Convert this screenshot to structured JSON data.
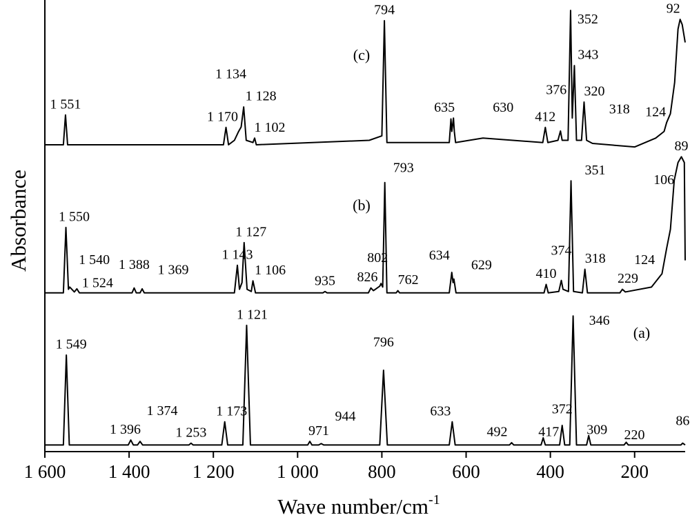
{
  "chart_data": {
    "type": "line",
    "xlabel": "Wave number/cm",
    "xlabel_sup": "-1",
    "ylabel": "Absorbance",
    "xlim": [
      1600,
      80
    ],
    "ylim": [
      0,
      100
    ],
    "xticks": [
      {
        "value": 1600,
        "label": "1 600"
      },
      {
        "value": 1400,
        "label": "1 400"
      },
      {
        "value": 1200,
        "label": "1 200"
      },
      {
        "value": 1000,
        "label": "1 000"
      },
      800,
      600,
      400,
      200
    ],
    "series": [
      {
        "name": "(a)",
        "color": "#000000",
        "x": [
          1600,
          1556,
          1549,
          1542,
          1402,
          1396,
          1390,
          1380,
          1374,
          1368,
          1258,
          1253,
          1248,
          1180,
          1173,
          1166,
          1130,
          1121,
          1112,
          976,
          971,
          966,
          950,
          944,
          938,
          805,
          796,
          787,
          640,
          633,
          626,
          497,
          492,
          487,
          422,
          417,
          412,
          378,
          372,
          366,
          354,
          346,
          338,
          314,
          309,
          304,
          225,
          220,
          215,
          90,
          86,
          80
        ],
        "values": [
          1.5,
          1.5,
          21.7,
          1.5,
          1.5,
          2.6,
          1.5,
          1.5,
          2.3,
          1.5,
          1.5,
          1.9,
          1.5,
          1.5,
          6.7,
          1.5,
          1.5,
          28.4,
          1.5,
          1.5,
          2.3,
          1.5,
          1.5,
          1.8,
          1.5,
          1.5,
          18.3,
          1.5,
          1.5,
          6.7,
          1.5,
          1.5,
          2.0,
          1.5,
          1.5,
          3.1,
          1.5,
          1.5,
          5.9,
          1.5,
          1.5,
          30.5,
          1.5,
          1.5,
          3.6,
          1.5,
          1.5,
          2.1,
          1.5,
          1.5,
          1.9,
          1.5
        ],
        "peaks": [
          1549,
          1396,
          1374,
          1253,
          1173,
          1121,
          971,
          944,
          796,
          633,
          492,
          417,
          372,
          346,
          309,
          220,
          86
        ],
        "peak_labels": [
          "1 549",
          "1 396",
          "1 374",
          "1 253",
          "1 173",
          "1 121",
          "971",
          "944",
          "796",
          "633",
          "492",
          "417",
          "372",
          "346",
          "309",
          "220",
          "86"
        ]
      },
      {
        "name": "(b)",
        "color": "#000000",
        "x": [
          1600,
          1556,
          1550,
          1544,
          1541,
          1530,
          1524,
          1518,
          1393,
          1388,
          1383,
          1374,
          1369,
          1364,
          1150,
          1143,
          1138,
          1132,
          1127,
          1120,
          1110,
          1106,
          1100,
          940,
          935,
          930,
          832,
          826,
          820,
          805,
          802,
          798,
          793,
          788,
          766,
          762,
          758,
          640,
          634,
          631,
          629,
          624,
          415,
          410,
          405,
          380,
          374,
          370,
          357,
          351,
          345,
          324,
          318,
          312,
          235,
          229,
          222,
          160,
          135,
          124,
          115,
          106,
          97,
          89,
          82,
          80
        ],
        "values": [
          35.7,
          35.7,
          50.4,
          36.5,
          37.0,
          35.9,
          36.6,
          35.7,
          35.7,
          36.8,
          35.7,
          35.7,
          36.6,
          35.7,
          35.7,
          41.9,
          36.5,
          38,
          47,
          36.5,
          36,
          38.4,
          35.7,
          35.7,
          36.0,
          35.7,
          35.7,
          36.8,
          36.2,
          37.2,
          37.8,
          37.0,
          60.5,
          35.7,
          35.7,
          36.2,
          35.7,
          35.7,
          40.3,
          38,
          38.8,
          35.7,
          35.7,
          37.6,
          35.7,
          36,
          38.5,
          36.5,
          36,
          60.9,
          36,
          35.7,
          41.0,
          35.7,
          35.7,
          36.5,
          35.9,
          37,
          40,
          45.7,
          50,
          61,
          65,
          66.3,
          65,
          43
        ],
        "peaks": [
          1550,
          1540,
          1524,
          1388,
          1369,
          1143,
          1127,
          1106,
          935,
          826,
          802,
          793,
          762,
          634,
          629,
          410,
          374,
          351,
          318,
          229,
          124,
          106,
          89
        ],
        "peak_labels": [
          "1 550",
          "1 540",
          "1 524",
          "1 388",
          "1 369",
          "1 143",
          "1 127",
          "1 106",
          "935",
          "826",
          "802",
          "793",
          "762",
          "634",
          "629",
          "410",
          "374",
          "351",
          "318",
          "229",
          "124",
          "106",
          "89"
        ]
      },
      {
        "name": "(c)",
        "color": "#000000",
        "x": [
          1600,
          1556,
          1551,
          1546,
          1176,
          1170,
          1164,
          1150,
          1140,
          1134,
          1128,
          1122,
          1106,
          1102,
          1098,
          830,
          800,
          794,
          788,
          640,
          636,
          634,
          630,
          628,
          625,
          560,
          418,
          412,
          406,
          382,
          376,
          372,
          358,
          352,
          348,
          343,
          338,
          326,
          320,
          314,
          300,
          200,
          150,
          130,
          124,
          115,
          105,
          97,
          92,
          87,
          80
        ],
        "values": [
          69,
          69,
          75.7,
          69,
          69,
          72.9,
          69,
          70,
          72,
          73,
          77.5,
          70,
          69.5,
          70.5,
          69,
          70,
          71,
          96.9,
          69.5,
          69.5,
          74.8,
          72,
          75,
          72,
          69.5,
          70.5,
          69.5,
          72.9,
          69.5,
          70,
          72.1,
          70,
          70,
          99.2,
          75,
          86.8,
          70,
          70,
          78.6,
          70,
          69.3,
          68.5,
          70.5,
          72,
          74,
          76,
          83,
          95,
          97.2,
          96,
          92
        ],
        "peaks": [
          1551,
          1170,
          1134,
          1128,
          1102,
          794,
          635,
          630,
          412,
          376,
          352,
          343,
          320,
          318,
          124,
          92
        ],
        "peak_labels": [
          "1 551",
          "1 170",
          "1 134",
          "1 128",
          "1 102",
          "794",
          "635",
          "630",
          "412",
          "376",
          "352",
          "343",
          "320",
          "318",
          "124",
          "92"
        ]
      }
    ]
  }
}
